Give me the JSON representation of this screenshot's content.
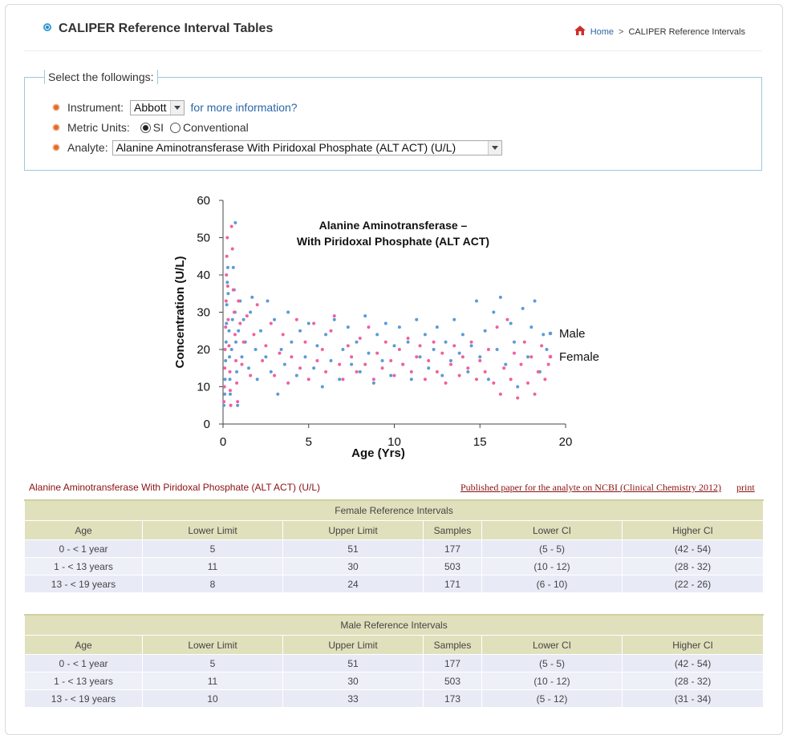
{
  "header": {
    "title": "CALIPER Reference Interval Tables",
    "breadcrumb": {
      "home": "Home",
      "separator": ">",
      "current": "CALIPER Reference Intervals"
    }
  },
  "selector": {
    "legend": "Select the followings:",
    "instrument_label": "Instrument:",
    "instrument_value": "Abbott",
    "more_info_link": "for more information?",
    "units_label": "Metric Units:",
    "unit_si": "SI",
    "unit_conventional": "Conventional",
    "unit_selected": "SI",
    "analyte_label": "Analyte:",
    "analyte_value": "Alanine Aminotransferase With Piridoxal Phosphate (ALT ACT) (U/L)"
  },
  "chart_data": {
    "type": "scatter",
    "title_line1": "Alanine Aminotransferase –",
    "title_line2": "With Piridoxal Phosphate (ALT ACT)",
    "xlabel": "Age (Yrs)",
    "ylabel": "Concentration (U/L)",
    "xlim": [
      0,
      20
    ],
    "ylim": [
      0,
      60
    ],
    "xticks": [
      "0",
      "5",
      "10",
      "15",
      "20"
    ],
    "yticks": [
      "0",
      "10",
      "20",
      "30",
      "40",
      "50",
      "60"
    ],
    "legend_position": "right",
    "colors": {
      "Male": "#5b9bd5",
      "Female": "#f0609e"
    },
    "series": [
      {
        "name": "Male",
        "points": [
          [
            0.05,
            5
          ],
          [
            0.1,
            8
          ],
          [
            0.12,
            12
          ],
          [
            0.15,
            17
          ],
          [
            0.18,
            22
          ],
          [
            0.2,
            27
          ],
          [
            0.22,
            32
          ],
          [
            0.25,
            38
          ],
          [
            0.28,
            42
          ],
          [
            0.3,
            35
          ],
          [
            0.35,
            25
          ],
          [
            0.38,
            18
          ],
          [
            0.4,
            12
          ],
          [
            0.42,
            8
          ],
          [
            0.45,
            5
          ],
          [
            0.5,
            20
          ],
          [
            0.55,
            28
          ],
          [
            0.6,
            42
          ],
          [
            0.65,
            36
          ],
          [
            0.7,
            30
          ],
          [
            0.72,
            54
          ],
          [
            0.75,
            22
          ],
          [
            0.8,
            14
          ],
          [
            0.85,
            5
          ],
          [
            0.9,
            25
          ],
          [
            1.0,
            33
          ],
          [
            1.1,
            18
          ],
          [
            1.2,
            28
          ],
          [
            1.3,
            22
          ],
          [
            1.5,
            15
          ],
          [
            1.6,
            30
          ],
          [
            1.7,
            34
          ],
          [
            1.9,
            20
          ],
          [
            2.0,
            12
          ],
          [
            2.2,
            25
          ],
          [
            2.5,
            18
          ],
          [
            2.6,
            33
          ],
          [
            2.8,
            14
          ],
          [
            3.0,
            28
          ],
          [
            3.2,
            8
          ],
          [
            3.4,
            20
          ],
          [
            3.6,
            16
          ],
          [
            3.8,
            30
          ],
          [
            4.0,
            22
          ],
          [
            4.3,
            13
          ],
          [
            4.5,
            25
          ],
          [
            4.8,
            18
          ],
          [
            5.0,
            27
          ],
          [
            5.3,
            15
          ],
          [
            5.5,
            21
          ],
          [
            5.8,
            10
          ],
          [
            6.0,
            24
          ],
          [
            6.3,
            17
          ],
          [
            6.5,
            28
          ],
          [
            6.8,
            12
          ],
          [
            7.0,
            20
          ],
          [
            7.3,
            26
          ],
          [
            7.5,
            16
          ],
          [
            7.8,
            22
          ],
          [
            8.0,
            14
          ],
          [
            8.3,
            29
          ],
          [
            8.5,
            19
          ],
          [
            8.8,
            11
          ],
          [
            9.0,
            24
          ],
          [
            9.3,
            17
          ],
          [
            9.5,
            27
          ],
          [
            9.8,
            13
          ],
          [
            10.0,
            21
          ],
          [
            10.3,
            26
          ],
          [
            10.5,
            16
          ],
          [
            10.8,
            22
          ],
          [
            11.0,
            12
          ],
          [
            11.3,
            28
          ],
          [
            11.5,
            18
          ],
          [
            11.8,
            24
          ],
          [
            12.0,
            15
          ],
          [
            12.3,
            20
          ],
          [
            12.5,
            26
          ],
          [
            12.8,
            13
          ],
          [
            13.0,
            22
          ],
          [
            13.3,
            17
          ],
          [
            13.5,
            28
          ],
          [
            13.8,
            19
          ],
          [
            14.0,
            24
          ],
          [
            14.3,
            14
          ],
          [
            14.5,
            21
          ],
          [
            14.8,
            33
          ],
          [
            15.0,
            18
          ],
          [
            15.3,
            25
          ],
          [
            15.5,
            12
          ],
          [
            15.8,
            30
          ],
          [
            16.0,
            20
          ],
          [
            16.2,
            34
          ],
          [
            16.5,
            16
          ],
          [
            16.8,
            27
          ],
          [
            17.0,
            22
          ],
          [
            17.2,
            10
          ],
          [
            17.5,
            31
          ],
          [
            17.8,
            18
          ],
          [
            18.0,
            26
          ],
          [
            18.2,
            33
          ],
          [
            18.5,
            14
          ],
          [
            18.7,
            24
          ],
          [
            18.9,
            20
          ]
        ]
      },
      {
        "name": "Female",
        "points": [
          [
            0.05,
            6
          ],
          [
            0.08,
            10
          ],
          [
            0.1,
            15
          ],
          [
            0.12,
            20
          ],
          [
            0.15,
            26
          ],
          [
            0.18,
            33
          ],
          [
            0.2,
            40
          ],
          [
            0.22,
            45
          ],
          [
            0.25,
            50
          ],
          [
            0.28,
            37
          ],
          [
            0.3,
            28
          ],
          [
            0.35,
            21
          ],
          [
            0.4,
            14
          ],
          [
            0.42,
            9
          ],
          [
            0.45,
            5
          ],
          [
            0.5,
            53
          ],
          [
            0.55,
            47
          ],
          [
            0.6,
            36
          ],
          [
            0.65,
            30
          ],
          [
            0.7,
            24
          ],
          [
            0.75,
            17
          ],
          [
            0.8,
            11
          ],
          [
            0.85,
            6
          ],
          [
            0.9,
            33
          ],
          [
            1.0,
            27
          ],
          [
            1.1,
            16
          ],
          [
            1.2,
            22
          ],
          [
            1.4,
            29
          ],
          [
            1.6,
            13
          ],
          [
            1.8,
            24
          ],
          [
            2.0,
            32
          ],
          [
            2.3,
            17
          ],
          [
            2.5,
            21
          ],
          [
            2.8,
            27
          ],
          [
            3.0,
            13
          ],
          [
            3.3,
            19
          ],
          [
            3.5,
            24
          ],
          [
            3.8,
            11
          ],
          [
            4.0,
            18
          ],
          [
            4.3,
            28
          ],
          [
            4.5,
            15
          ],
          [
            4.8,
            22
          ],
          [
            5.0,
            12
          ],
          [
            5.3,
            27
          ],
          [
            5.5,
            17
          ],
          [
            5.8,
            20
          ],
          [
            6.0,
            14
          ],
          [
            6.3,
            25
          ],
          [
            6.5,
            29
          ],
          [
            6.8,
            16
          ],
          [
            7.0,
            12
          ],
          [
            7.3,
            21
          ],
          [
            7.5,
            18
          ],
          [
            7.8,
            14
          ],
          [
            8.0,
            23
          ],
          [
            8.3,
            16
          ],
          [
            8.5,
            26
          ],
          [
            8.8,
            12
          ],
          [
            9.0,
            19
          ],
          [
            9.3,
            15
          ],
          [
            9.5,
            22
          ],
          [
            9.8,
            17
          ],
          [
            10.0,
            13
          ],
          [
            10.3,
            20
          ],
          [
            10.5,
            16
          ],
          [
            10.8,
            23
          ],
          [
            11.0,
            14
          ],
          [
            11.3,
            18
          ],
          [
            11.5,
            21
          ],
          [
            11.8,
            12
          ],
          [
            12.0,
            17
          ],
          [
            12.3,
            22
          ],
          [
            12.5,
            14
          ],
          [
            12.8,
            19
          ],
          [
            13.0,
            11
          ],
          [
            13.3,
            16
          ],
          [
            13.5,
            21
          ],
          [
            13.8,
            13
          ],
          [
            14.0,
            18
          ],
          [
            14.3,
            15
          ],
          [
            14.5,
            22
          ],
          [
            14.8,
            12
          ],
          [
            15.0,
            17
          ],
          [
            15.3,
            14
          ],
          [
            15.5,
            20
          ],
          [
            15.8,
            11
          ],
          [
            16.0,
            26
          ],
          [
            16.2,
            8
          ],
          [
            16.4,
            15
          ],
          [
            16.6,
            28
          ],
          [
            16.8,
            12
          ],
          [
            17.0,
            19
          ],
          [
            17.2,
            7
          ],
          [
            17.4,
            16
          ],
          [
            17.6,
            22
          ],
          [
            17.8,
            11
          ],
          [
            18.0,
            18
          ],
          [
            18.2,
            8
          ],
          [
            18.4,
            14
          ],
          [
            18.6,
            21
          ],
          [
            18.8,
            12
          ],
          [
            19.0,
            16
          ]
        ]
      }
    ]
  },
  "analyte_caption": "Alanine Aminotransferase With Piridoxal Phosphate (ALT ACT) (U/L)",
  "paper_link": "Published paper for the analyte on NCBI (Clinical Chemistry 2012)",
  "print_link": "print",
  "columns": [
    "Age",
    "Lower Limit",
    "Upper Limit",
    "Samples",
    "Lower CI",
    "Higher CI"
  ],
  "female_table": {
    "caption": "Female Reference Intervals",
    "rows": [
      [
        "0 - < 1 year",
        "5",
        "51",
        "177",
        "(5 - 5)",
        "(42 - 54)"
      ],
      [
        "1 - < 13 years",
        "11",
        "30",
        "503",
        "(10 - 12)",
        "(28 - 32)"
      ],
      [
        "13 - < 19 years",
        "8",
        "24",
        "171",
        "(6 - 10)",
        "(22 - 26)"
      ]
    ]
  },
  "male_table": {
    "caption": "Male Reference Intervals",
    "rows": [
      [
        "0 - < 1 year",
        "5",
        "51",
        "177",
        "(5 - 5)",
        "(42 - 54)"
      ],
      [
        "1 - < 13 years",
        "11",
        "30",
        "503",
        "(10 - 12)",
        "(28 - 32)"
      ],
      [
        "13 - < 19 years",
        "10",
        "33",
        "173",
        "(5 - 12)",
        "(31 - 34)"
      ]
    ]
  }
}
